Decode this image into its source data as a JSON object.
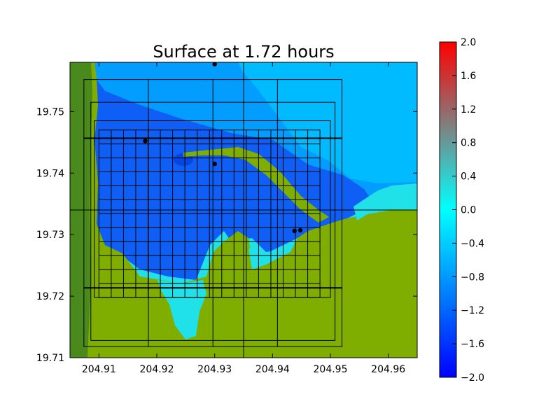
{
  "chart_data": {
    "type": "heatmap",
    "title": "Surface at 1.72 hours",
    "xlabel": "",
    "ylabel": "",
    "xlim": [
      204.905,
      204.965
    ],
    "ylim": [
      19.71,
      19.758
    ],
    "x_ticks": [
      204.91,
      204.92,
      204.93,
      204.94,
      204.95,
      204.96
    ],
    "y_ticks": [
      19.71,
      19.72,
      19.73,
      19.74,
      19.75
    ],
    "x_tick_labels": [
      "204.91",
      "204.92",
      "204.93",
      "204.94",
      "204.95",
      "204.96"
    ],
    "y_tick_labels": [
      "19.71",
      "19.72",
      "19.73",
      "19.74",
      "19.75"
    ],
    "colorbar": {
      "vmin": -2.0,
      "vmax": 2.0,
      "ticks": [
        2.0,
        1.6,
        1.2,
        0.8,
        0.4,
        0.0,
        -0.4,
        -0.8,
        -1.2,
        -1.6,
        -2.0
      ],
      "tick_labels": [
        "2.0",
        "1.6",
        "1.2",
        "0.8",
        "0.4",
        "0.0",
        "−0.4",
        "−0.8",
        "−1.2",
        "−1.6",
        "−2.0"
      ],
      "colors": [
        "#0000ff",
        "#00ffff",
        "#ff0000"
      ]
    },
    "colors": {
      "land": "#7fae00",
      "land_dark": "#4a8a1c",
      "deep_water": "#0f5ef5",
      "shelf_water": "#00b4ff",
      "shallow_water": "#20e0e8"
    },
    "grid_patches": [
      {
        "x": [
          204.9074,
          204.952
        ],
        "y": [
          19.7118,
          19.7552
        ]
      },
      {
        "x": [
          204.9086,
          204.9508
        ],
        "y": [
          19.7128,
          19.7515
        ]
      },
      {
        "x": [
          204.9092,
          204.95
        ],
        "y": [
          19.7198,
          19.7485
        ]
      },
      {
        "x": [
          204.91,
          204.9482
        ],
        "y": [
          19.7198,
          19.747
        ]
      },
      {
        "x": [
          204.905,
          204.965
        ],
        "y": [
          19.734,
          19.734
        ]
      },
      {
        "x": [
          204.935,
          204.935
        ],
        "y": [
          19.71,
          19.758
        ]
      }
    ],
    "gauges": [
      {
        "x": 204.93,
        "y": 19.7577
      },
      {
        "x": 204.918,
        "y": 19.7452
      },
      {
        "x": 204.93,
        "y": 19.7415
      },
      {
        "x": 204.9438,
        "y": 19.7306
      },
      {
        "x": 204.9448,
        "y": 19.7307
      }
    ]
  }
}
